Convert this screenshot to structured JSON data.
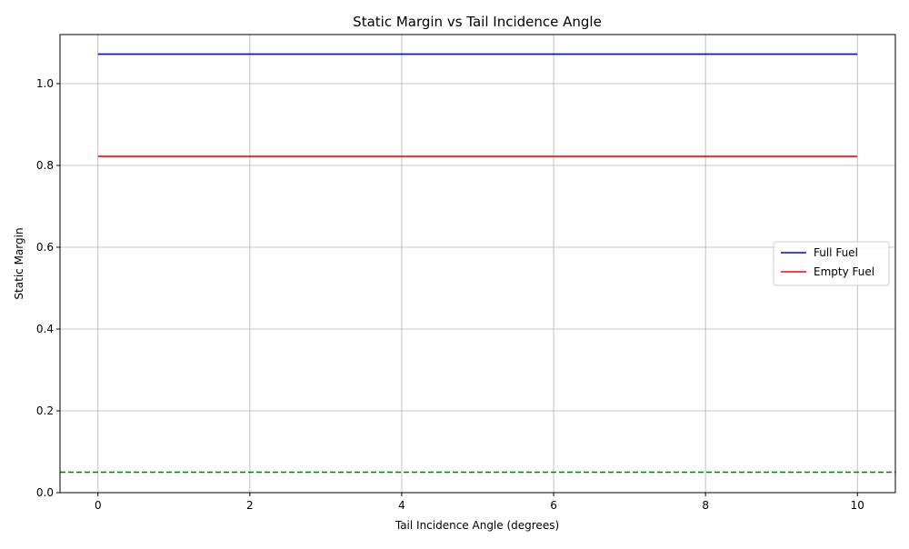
{
  "chart_data": {
    "type": "line",
    "title": "Static Margin vs Tail Incidence Angle",
    "xlabel": "Tail Incidence Angle (degrees)",
    "ylabel": "Static Margin",
    "xlim": [
      -0.5,
      10.5
    ],
    "ylim": [
      0.0,
      1.12
    ],
    "xticks": [
      0,
      2,
      4,
      6,
      8,
      10
    ],
    "xtick_labels": [
      "0",
      "2",
      "4",
      "6",
      "8",
      "10"
    ],
    "yticks": [
      0.0,
      0.2,
      0.4,
      0.6,
      0.8,
      1.0
    ],
    "ytick_labels": [
      "0.0",
      "0.2",
      "0.4",
      "0.6",
      "0.8",
      "1.0"
    ],
    "grid": true,
    "legend_position": "center-right",
    "series": [
      {
        "name": "Full Fuel",
        "color": "#0000ff",
        "style": "solid",
        "x": [
          0,
          10
        ],
        "values": [
          1.072,
          1.072
        ]
      },
      {
        "name": "Empty Fuel",
        "color": "#ff0000",
        "style": "solid",
        "x": [
          0,
          10
        ],
        "values": [
          0.822,
          0.822
        ]
      }
    ],
    "reference_lines": [
      {
        "orientation": "horizontal",
        "value": 0.05,
        "color": "#008000",
        "style": "dashed"
      }
    ]
  }
}
